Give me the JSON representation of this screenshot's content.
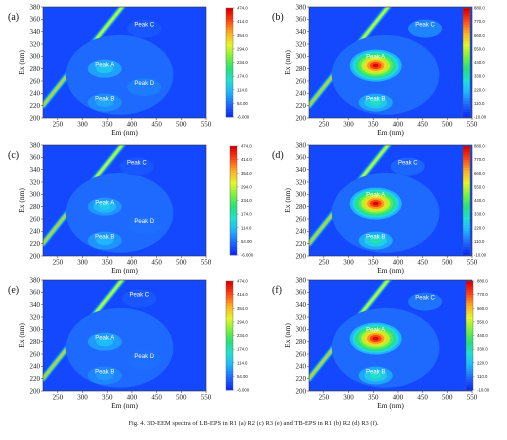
{
  "caption": "Fig. 4. 3D-EEM spectra of LB-EPS in R1 (a) R2 (c) R3 (e) and TB-EPS in R1 (b) R2 (d) R3 (f).",
  "chart_data": [
    {
      "type": "heatmap",
      "panel_label": "(a)",
      "xlabel": "Em (nm)",
      "ylabel": "Ex (nm)",
      "xlim": [
        220,
        550
      ],
      "ylim": [
        200,
        380
      ],
      "xticks": [
        250,
        300,
        350,
        400,
        450,
        500,
        550
      ],
      "yticks": [
        200,
        220,
        240,
        260,
        280,
        300,
        320,
        340,
        360,
        380
      ],
      "colorbar_ticks": [
        "474.0",
        "414.0",
        "354.0",
        "294.0",
        "234.0",
        "174.0",
        "114.0",
        "54.00",
        "-6.000"
      ],
      "colorbar_range": [
        -6,
        474
      ],
      "peaks": [
        {
          "label": "Peak A",
          "ex": 280,
          "em": 345,
          "intensity": 120
        },
        {
          "label": "Peak B",
          "ex": 225,
          "em": 345,
          "intensity": 90
        },
        {
          "label": "Peak C",
          "ex": 345,
          "em": 425,
          "intensity": 30
        },
        {
          "label": "Peak D",
          "ex": 250,
          "em": 425,
          "intensity": 60
        }
      ]
    },
    {
      "type": "heatmap",
      "panel_label": "(b)",
      "xlabel": "Em (nm)",
      "ylabel": "Ex (nm)",
      "xlim": [
        220,
        550
      ],
      "ylim": [
        200,
        380
      ],
      "xticks": [
        250,
        300,
        350,
        400,
        450,
        500,
        550
      ],
      "yticks": [
        200,
        220,
        240,
        260,
        280,
        300,
        320,
        340,
        360,
        380
      ],
      "colorbar_ticks": [
        "880.0",
        "770.0",
        "660.0",
        "550.0",
        "440.0",
        "330.0",
        "220.0",
        "110.0",
        "-10.00"
      ],
      "colorbar_range": [
        -10,
        880
      ],
      "peaks": [
        {
          "label": "Peak A",
          "ex": 285,
          "em": 355,
          "intensity": 880
        },
        {
          "label": "Peak B",
          "ex": 225,
          "em": 355,
          "intensity": 300
        },
        {
          "label": "Peak C",
          "ex": 345,
          "em": 455,
          "intensity": 120
        }
      ]
    },
    {
      "type": "heatmap",
      "panel_label": "(c)",
      "xlabel": "Em (nm)",
      "ylabel": "Ex (nm)",
      "xlim": [
        220,
        550
      ],
      "ylim": [
        200,
        380
      ],
      "xticks": [
        250,
        300,
        350,
        400,
        450,
        500,
        550
      ],
      "yticks": [
        200,
        220,
        240,
        260,
        280,
        300,
        320,
        340,
        360,
        380
      ],
      "colorbar_ticks": [
        "474.0",
        "414.0",
        "354.0",
        "294.0",
        "234.0",
        "174.0",
        "114.0",
        "54.00",
        "-6.000"
      ],
      "colorbar_range": [
        -6,
        474
      ],
      "peaks": [
        {
          "label": "Peak A",
          "ex": 280,
          "em": 345,
          "intensity": 130
        },
        {
          "label": "Peak B",
          "ex": 225,
          "em": 345,
          "intensity": 100
        },
        {
          "label": "Peak C",
          "ex": 345,
          "em": 410,
          "intensity": 30
        },
        {
          "label": "Peak D",
          "ex": 250,
          "em": 425,
          "intensity": 50
        }
      ]
    },
    {
      "type": "heatmap",
      "panel_label": "(d)",
      "xlabel": "Em (nm)",
      "ylabel": "Ex (nm)",
      "xlim": [
        220,
        550
      ],
      "ylim": [
        200,
        380
      ],
      "xticks": [
        250,
        300,
        350,
        400,
        450,
        500,
        550
      ],
      "yticks": [
        200,
        220,
        240,
        260,
        280,
        300,
        320,
        340,
        360,
        380
      ],
      "colorbar_ticks": [
        "880.0",
        "770.0",
        "660.0",
        "550.0",
        "440.0",
        "330.0",
        "220.0",
        "110.0",
        "-10.00"
      ],
      "colorbar_range": [
        -10,
        880
      ],
      "peaks": [
        {
          "label": "Peak A",
          "ex": 285,
          "em": 355,
          "intensity": 880
        },
        {
          "label": "Peak B",
          "ex": 225,
          "em": 355,
          "intensity": 320
        },
        {
          "label": "Peak C",
          "ex": 345,
          "em": 420,
          "intensity": 80
        }
      ]
    },
    {
      "type": "heatmap",
      "panel_label": "(e)",
      "xlabel": "Em (nm)",
      "ylabel": "Ex (nm)",
      "xlim": [
        220,
        550
      ],
      "ylim": [
        200,
        380
      ],
      "xticks": [
        250,
        300,
        350,
        400,
        450,
        500,
        550
      ],
      "yticks": [
        200,
        220,
        240,
        260,
        280,
        300,
        320,
        340,
        360,
        380
      ],
      "colorbar_ticks": [
        "474.0",
        "414.0",
        "354.0",
        "294.0",
        "234.0",
        "174.0",
        "114.0",
        "54.00",
        "-6.000"
      ],
      "colorbar_range": [
        -6,
        474
      ],
      "peaks": [
        {
          "label": "Peak A",
          "ex": 280,
          "em": 345,
          "intensity": 110
        },
        {
          "label": "Peak B",
          "ex": 225,
          "em": 345,
          "intensity": 80
        },
        {
          "label": "Peak C",
          "ex": 350,
          "em": 415,
          "intensity": 30
        },
        {
          "label": "Peak D",
          "ex": 250,
          "em": 425,
          "intensity": 50
        }
      ]
    },
    {
      "type": "heatmap",
      "panel_label": "(f)",
      "xlabel": "Em (nm)",
      "ylabel": "Ex (nm)",
      "xlim": [
        220,
        550
      ],
      "ylim": [
        200,
        380
      ],
      "xticks": [
        250,
        300,
        350,
        400,
        450,
        500,
        550
      ],
      "yticks": [
        200,
        220,
        240,
        260,
        280,
        300,
        320,
        340,
        360,
        380
      ],
      "colorbar_ticks": [
        "880.0",
        "770.0",
        "660.0",
        "550.0",
        "440.0",
        "330.0",
        "220.0",
        "110.0",
        "-10.00"
      ],
      "colorbar_range": [
        -10,
        880
      ],
      "peaks": [
        {
          "label": "Peak A",
          "ex": 285,
          "em": 355,
          "intensity": 880
        },
        {
          "label": "Peak B",
          "ex": 225,
          "em": 355,
          "intensity": 300
        },
        {
          "label": "Peak C",
          "ex": 345,
          "em": 455,
          "intensity": 100
        }
      ]
    }
  ]
}
